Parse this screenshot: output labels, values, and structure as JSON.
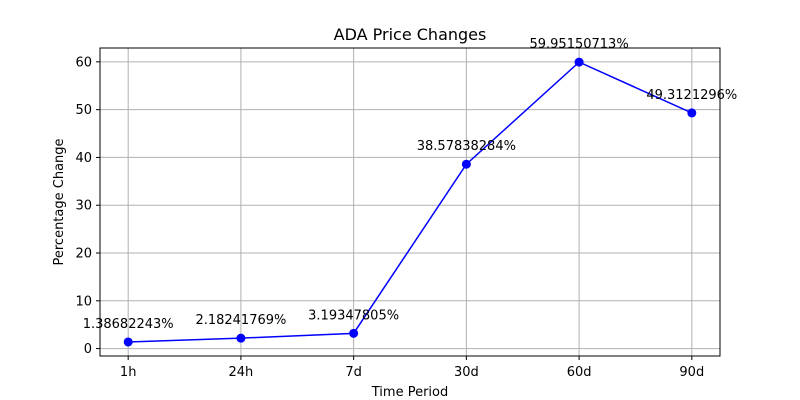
{
  "chart_data": {
    "type": "line",
    "title": "ADA Price Changes",
    "xlabel": "Time Period",
    "ylabel": "Percentage Change",
    "categories": [
      "1h",
      "24h",
      "7d",
      "30d",
      "60d",
      "90d"
    ],
    "series": [
      {
        "values": [
          1.38682243,
          2.18241769,
          3.19347805,
          38.57838284,
          59.95150713,
          49.3121296
        ],
        "labels": [
          "1.38682243%",
          "2.18241769%",
          "3.19347805%",
          "38.57838284%",
          "59.95150713%",
          "49.3121296%"
        ],
        "color": "#0000ff"
      }
    ],
    "ylim": [
      -1.55,
      62.9
    ],
    "yticks": [
      0,
      10,
      20,
      30,
      40,
      50,
      60
    ],
    "grid": true,
    "legend": "none"
  }
}
